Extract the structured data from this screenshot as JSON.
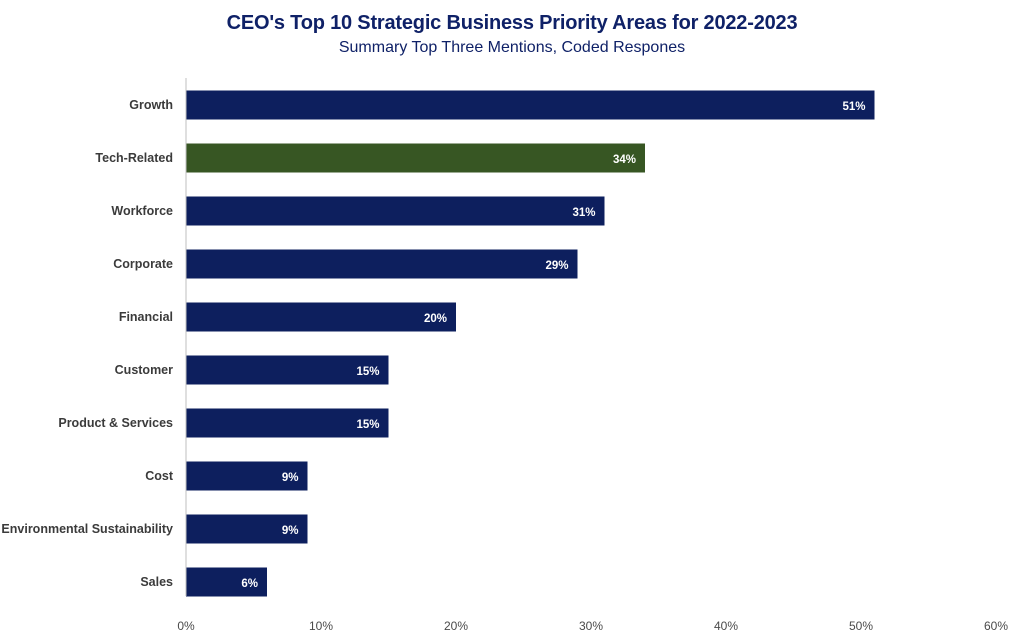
{
  "chart_data": {
    "type": "bar",
    "orientation": "horizontal",
    "title": "CEO's Top 10 Strategic Business Priority Areas for 2022-2023",
    "subtitle": "Summary Top Three Mentions, Coded Respones",
    "categories": [
      "Growth",
      "Tech-Related",
      "Workforce",
      "Corporate",
      "Financial",
      "Customer",
      "Product & Services",
      "Cost",
      "Environmental Sustainability",
      "Sales"
    ],
    "values": [
      51,
      34,
      31,
      29,
      20,
      15,
      15,
      9,
      9,
      6
    ],
    "data_labels": [
      "51%",
      "34%",
      "31%",
      "29%",
      "20%",
      "15%",
      "15%",
      "9%",
      "9%",
      "6%"
    ],
    "xlim": [
      0,
      60
    ],
    "xticks": [
      0,
      10,
      20,
      30,
      40,
      50,
      60
    ],
    "xtick_labels": [
      "0%",
      "10%",
      "20%",
      "30%",
      "40%",
      "50%",
      "60%"
    ],
    "xlabel": "",
    "ylabel": "",
    "grid": false,
    "legend": "none",
    "colors": {
      "default_bar": "#0d1f5e",
      "highlight_bar": "#375623",
      "highlight_category": "Tech-Related",
      "title": "#0f2167"
    }
  }
}
